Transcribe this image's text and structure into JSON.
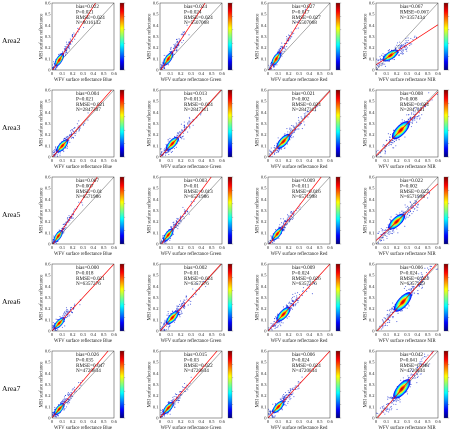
{
  "figure": {
    "rows": [
      "Area2",
      "Area3",
      "Area5",
      "Area6",
      "Area7"
    ],
    "bands": [
      "Blue",
      "Green",
      "Red",
      "NIR"
    ],
    "colormap": [
      "#00007f",
      "#0000ff",
      "#0080ff",
      "#00ffff",
      "#80ff80",
      "#ffff00",
      "#ff8000",
      "#ff0000",
      "#7f0000"
    ],
    "fit_line_color": "#ff0000",
    "one_to_one_line_color": "#555555"
  },
  "chart_data": {
    "type": "scatter",
    "plot_style": "density scatter with 1:1 line and linear fit line",
    "xlabel_template": "WFV surface reflectance {band}",
    "ylabel": "MSI surface reflectance",
    "xlim": [
      0,
      0.6
    ],
    "ylim": [
      0,
      0.6
    ],
    "x_ticks": [
      "0",
      "0.1",
      "0.2",
      "0.3",
      "0.4",
      "0.5",
      "0.6"
    ],
    "y_ticks": [
      "0",
      "0.1",
      "0.2",
      "0.3",
      "0.4",
      "0.5",
      "0.6"
    ],
    "panels": [
      {
        "row": "Area2",
        "band": "Blue",
        "xlabel": "WFV surface reflectance Blue",
        "stats": [
          "bias=0.022",
          "P=0.021",
          "RMSE=0.024",
          "N=8016132"
        ],
        "center": [
          0.07,
          0.09
        ],
        "slope": 1.45
      },
      {
        "row": "Area2",
        "band": "Green",
        "xlabel": "WFV surface reflectance Green",
        "stats": [
          "bias=0.024",
          "P=0.024",
          "RMSE=0.024",
          "N=5507068"
        ],
        "center": [
          0.08,
          0.1
        ],
        "slope": 1.4
      },
      {
        "row": "Area2",
        "band": "Red",
        "xlabel": "WFV surface reflectance Red",
        "stats": [
          "bias=0.027",
          "P=0.017",
          "RMSE=0.027",
          "N=5507068"
        ],
        "center": [
          0.08,
          0.1
        ],
        "slope": 1.5
      },
      {
        "row": "Area2",
        "band": "NIR",
        "xlabel": "WFV surface reflectance NIR",
        "stats": [
          "bias=0.067",
          "RMSE=0.067",
          "N=3357434"
        ],
        "center": [
          0.14,
          0.13
        ],
        "slope": 0.6
      },
      {
        "row": "Area3",
        "band": "Blue",
        "xlabel": "WFV surface reflectance Blue",
        "stats": [
          "bias=0.004",
          "P=0.021",
          "RMSE=0.021",
          "N=2847307"
        ],
        "center": [
          0.1,
          0.1
        ],
        "slope": 1.05
      },
      {
        "row": "Area3",
        "band": "Green",
        "xlabel": "WFV surface reflectance Green",
        "stats": [
          "bias=0.013",
          "P=0.013",
          "RMSE=0.024",
          "N=2847311"
        ],
        "center": [
          0.12,
          0.12
        ],
        "slope": 1.02
      },
      {
        "row": "Area3",
        "band": "Red",
        "xlabel": "WFV surface reflectance Red",
        "stats": [
          "bias=0.021",
          "P=0.002",
          "RMSE=0.024",
          "N=2847311"
        ],
        "center": [
          0.15,
          0.14
        ],
        "slope": 1.0
      },
      {
        "row": "Area3",
        "band": "NIR",
        "xlabel": "WFV surface reflectance NIR",
        "stats": [
          "bias=0.008",
          "P=0.008",
          "RMSE=0.024",
          "N=2847311"
        ],
        "center": [
          0.24,
          0.24
        ],
        "slope": 0.95
      },
      {
        "row": "Area5",
        "band": "Blue",
        "xlabel": "WFV surface reflectance Blue",
        "stats": [
          "bias=0.007",
          "P=0.007",
          "RMSE=0.01",
          "N=6571986"
        ],
        "center": [
          0.06,
          0.07
        ],
        "slope": 1.4
      },
      {
        "row": "Area5",
        "band": "Green",
        "xlabel": "WFV surface reflectance Green",
        "stats": [
          "bias=0.003",
          "P=0.01",
          "RMSE=0.013",
          "N=6571986"
        ],
        "center": [
          0.08,
          0.08
        ],
        "slope": 1.25
      },
      {
        "row": "Area5",
        "band": "Red",
        "xlabel": "WFV surface reflectance Red",
        "stats": [
          "bias=0.009",
          "P=0.011",
          "RMSE=0.016",
          "N=6571998"
        ],
        "center": [
          0.09,
          0.09
        ],
        "slope": 1.2
      },
      {
        "row": "Area5",
        "band": "NIR",
        "xlabel": "WFV surface reflectance NIR",
        "stats": [
          "bias=0.022",
          "P=0.002",
          "RMSE=0.022",
          "N=6571998"
        ],
        "center": [
          0.2,
          0.2
        ],
        "slope": 0.85
      },
      {
        "row": "Area6",
        "band": "Blue",
        "xlabel": "WFV surface reflectance Blue",
        "stats": [
          "bias=0.000",
          "P=0.018",
          "RMSE=0.021",
          "N=6357276"
        ],
        "center": [
          0.07,
          0.07
        ],
        "slope": 1.0
      },
      {
        "row": "Area6",
        "band": "Green",
        "xlabel": "WFV surface reflectance Green",
        "stats": [
          "bias=0.002",
          "P=0.01",
          "RMSE=0.024",
          "N=6357276"
        ],
        "center": [
          0.12,
          0.12
        ],
        "slope": 1.02
      },
      {
        "row": "Area6",
        "band": "Red",
        "xlabel": "WFV surface reflectance Red",
        "stats": [
          "bias=0.009",
          "P=0.024",
          "RMSE=0.026",
          "N=6357276"
        ],
        "center": [
          0.15,
          0.15
        ],
        "slope": 1.0
      },
      {
        "row": "Area6",
        "band": "NIR",
        "xlabel": "WFV surface reflectance NIR",
        "stats": [
          "bias=0.006",
          "P=0.024",
          "RMSE=0.024",
          "N=6357229"
        ],
        "center": [
          0.26,
          0.26
        ],
        "slope": 1.05
      },
      {
        "row": "Area7",
        "band": "Blue",
        "xlabel": "WFV surface reflectance Blue",
        "stats": [
          "bias=0.026",
          "P=0.035",
          "RMSE=0.047",
          "N=4720834"
        ],
        "center": [
          0.07,
          0.08
        ],
        "slope": 1.1
      },
      {
        "row": "Area7",
        "band": "Green",
        "xlabel": "WFV surface reflectance Green",
        "stats": [
          "bias=0.015",
          "P=0.03",
          "RMSE=0.022",
          "N=4720834"
        ],
        "center": [
          0.08,
          0.09
        ],
        "slope": 1.08
      },
      {
        "row": "Area7",
        "band": "Red",
        "xlabel": "WFV surface reflectance Red",
        "stats": [
          "bias=0.006",
          "P=0.024",
          "RMSE=0.024",
          "N=4720834"
        ],
        "center": [
          0.1,
          0.1
        ],
        "slope": 1.0
      },
      {
        "row": "Area7",
        "band": "NIR",
        "xlabel": "WFV surface reflectance NIR",
        "stats": [
          "bias=0.042",
          "P=0.041",
          "RMSE=0.048",
          "N=4720834"
        ],
        "center": [
          0.25,
          0.26
        ],
        "slope": 1.1
      }
    ]
  }
}
